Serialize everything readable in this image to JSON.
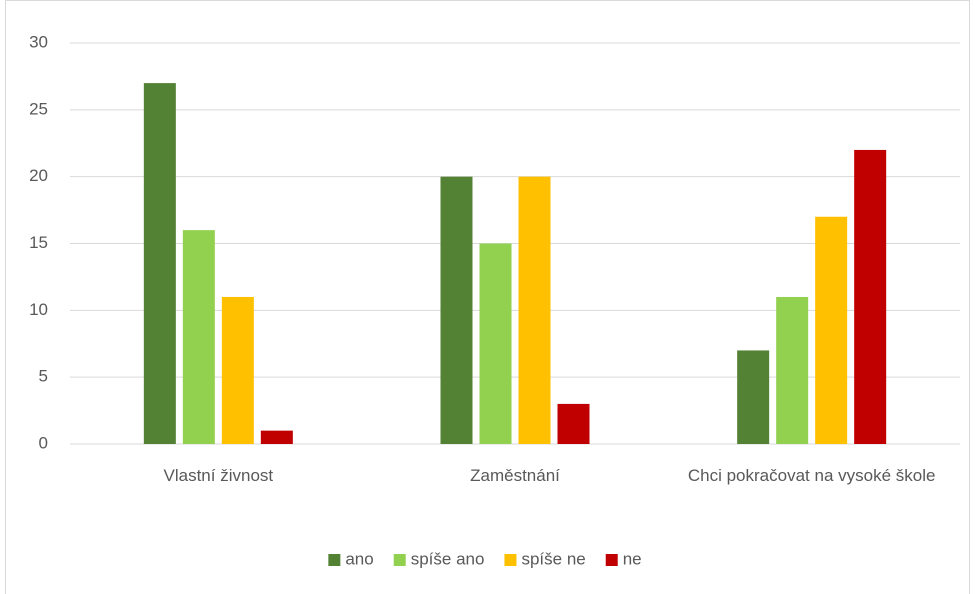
{
  "chart_data": {
    "type": "bar",
    "categories": [
      "Vlastní živnost",
      "Zaměstnání",
      "Chci pokračovat na vysoké škole"
    ],
    "series": [
      {
        "name": "ano",
        "color": "#548235",
        "values": [
          27,
          20,
          7
        ]
      },
      {
        "name": "spíše ano",
        "color": "#92d050",
        "values": [
          16,
          15,
          11
        ]
      },
      {
        "name": "spíše ne",
        "color": "#ffc000",
        "values": [
          11,
          20,
          17
        ]
      },
      {
        "name": "ne",
        "color": "#c00000",
        "values": [
          1,
          3,
          22
        ]
      }
    ],
    "ylim": [
      0,
      30
    ],
    "yticks": [
      0,
      5,
      10,
      15,
      20,
      25,
      30
    ],
    "grid": true,
    "legend": "bottom"
  }
}
